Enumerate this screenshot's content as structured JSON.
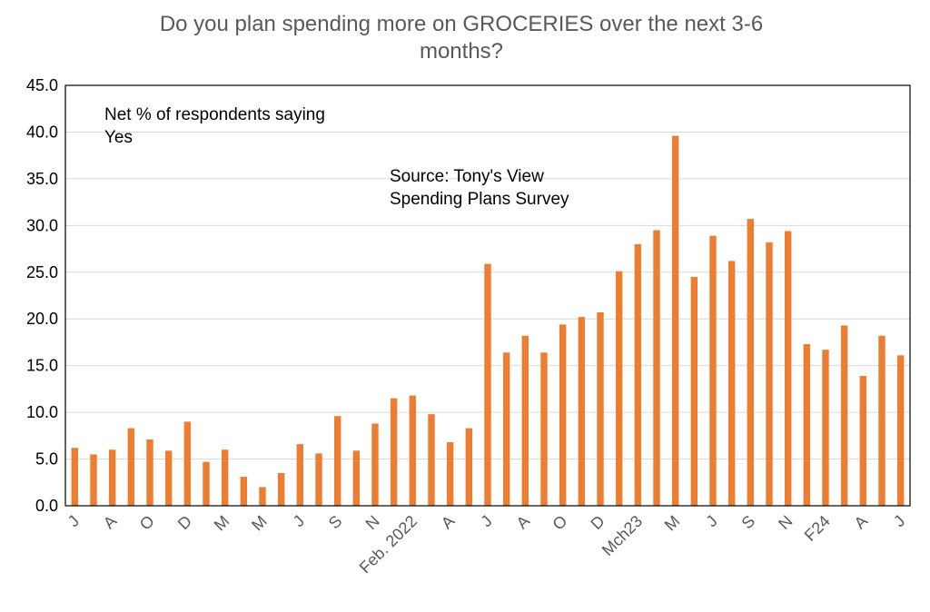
{
  "chart_data": {
    "type": "bar",
    "title_line1": "Do you plan spending more on GROCERIES over the next 3-6",
    "title_line2": "months?",
    "annotation1_line1": "Net % of respondents saying",
    "annotation1_line2": "Yes",
    "annotation2_line1": "Source: Tony's View",
    "annotation2_line2": "Spending Plans Survey",
    "ylim": [
      0,
      45
    ],
    "yticks": [
      "0.0",
      "5.0",
      "10.0",
      "15.0",
      "20.0",
      "25.0",
      "30.0",
      "35.0",
      "40.0",
      "45.0"
    ],
    "grid": true,
    "bar_color": "#ED7D31",
    "values": [
      6.2,
      5.5,
      6.0,
      8.3,
      7.1,
      5.9,
      9.0,
      4.7,
      6.0,
      3.1,
      2.0,
      3.5,
      6.6,
      5.6,
      9.6,
      5.9,
      8.8,
      11.5,
      11.8,
      9.8,
      6.8,
      8.3,
      25.9,
      16.4,
      18.2,
      16.4,
      19.4,
      20.2,
      20.7,
      25.1,
      28.0,
      29.5,
      39.6,
      24.5,
      28.9,
      26.2,
      30.7,
      28.2,
      29.4,
      17.3,
      16.7,
      19.3,
      13.9,
      18.2,
      16.1
    ],
    "xtick_labels": [
      {
        "index": 0,
        "label": "J"
      },
      {
        "index": 2,
        "label": "A"
      },
      {
        "index": 4,
        "label": "O"
      },
      {
        "index": 6,
        "label": "D"
      },
      {
        "index": 8,
        "label": "M"
      },
      {
        "index": 10,
        "label": "M"
      },
      {
        "index": 12,
        "label": "J"
      },
      {
        "index": 14,
        "label": "S"
      },
      {
        "index": 16,
        "label": "N"
      },
      {
        "index": 18,
        "label": "Feb. 2022"
      },
      {
        "index": 20,
        "label": "A"
      },
      {
        "index": 22,
        "label": "J"
      },
      {
        "index": 24,
        "label": "A"
      },
      {
        "index": 26,
        "label": "O"
      },
      {
        "index": 28,
        "label": "D"
      },
      {
        "index": 30,
        "label": "Mch23"
      },
      {
        "index": 32,
        "label": "M"
      },
      {
        "index": 34,
        "label": "J"
      },
      {
        "index": 36,
        "label": "S"
      },
      {
        "index": 38,
        "label": "N"
      },
      {
        "index": 40,
        "label": "F24"
      },
      {
        "index": 42,
        "label": "A"
      },
      {
        "index": 44,
        "label": "J"
      }
    ]
  }
}
